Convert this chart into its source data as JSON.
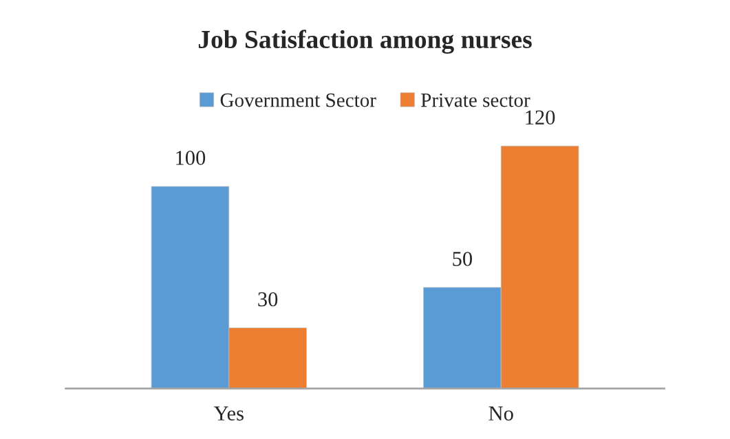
{
  "chart_data": {
    "type": "bar",
    "title": "Job Satisfaction among nurses",
    "categories": [
      "Yes",
      "No"
    ],
    "series": [
      {
        "name": "Government Sector",
        "color": "#5b9bd5",
        "values": [
          100,
          50
        ]
      },
      {
        "name": "Private sector",
        "color": "#ed7d31",
        "values": [
          30,
          120
        ]
      }
    ],
    "data_labels": true,
    "legend": "top",
    "grid": false
  }
}
